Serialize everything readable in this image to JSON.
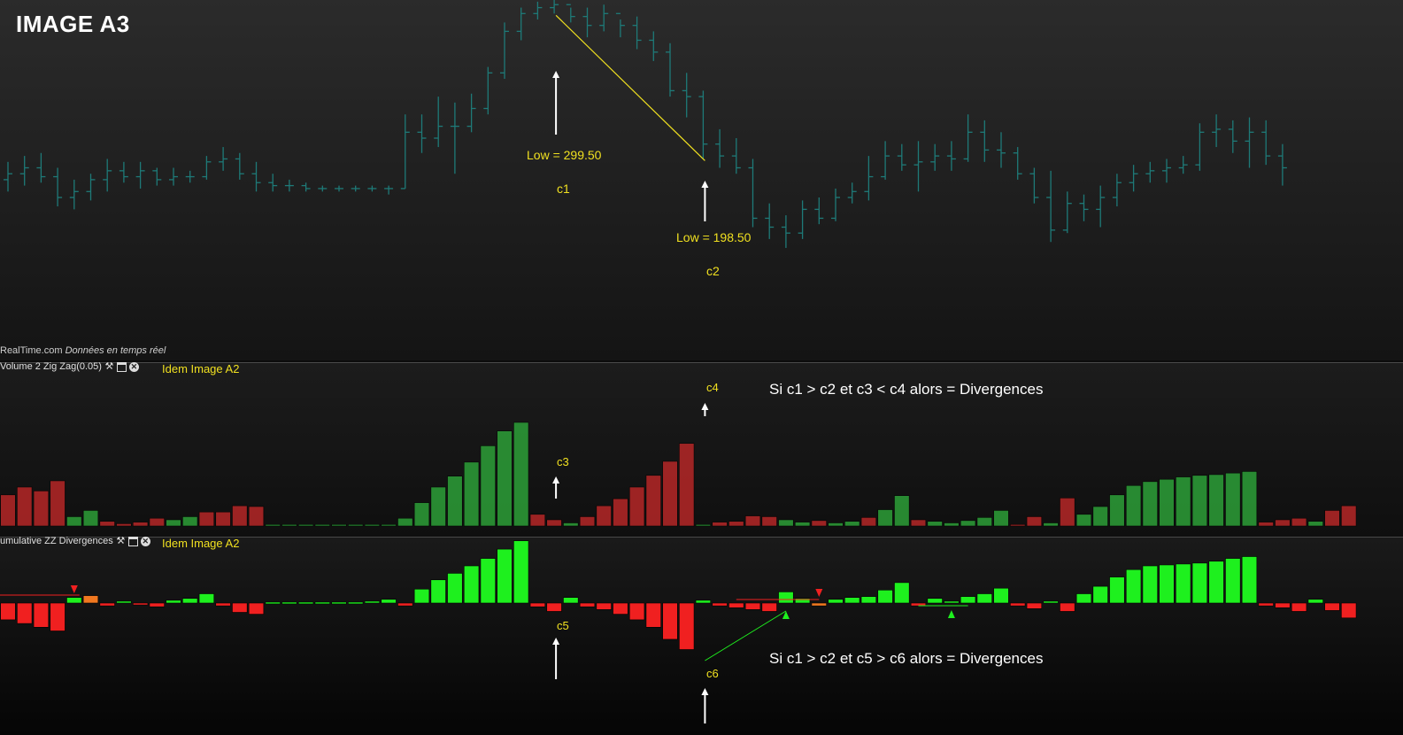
{
  "header": {
    "title": "IMAGE A3",
    "source": "RealTime.com",
    "source_note": "Données en temps réel"
  },
  "panes": {
    "volume": {
      "label": "Volume 2 Zig Zag(0.05)",
      "note": "Idem Image A2"
    },
    "divergence": {
      "label": "umulative ZZ Divergences",
      "note": "Idem Image A2"
    }
  },
  "annotations": {
    "low1": "Low = 299.50",
    "c1": "c1",
    "low2": "Low = 198.50",
    "c2": "c2",
    "c3": "c3",
    "c4": "c4",
    "c5": "c5",
    "c6": "c6",
    "rule1": "Si c1 > c2 et c3 < c4 alors = Divergences",
    "rule2": "Si c1 > c2 et c5 > c6 alors = Divergences"
  },
  "colors": {
    "price": "#1e7a78",
    "up": "#2ea83a",
    "down": "#c02828",
    "div_up": "#1ef01e",
    "div_down": "#f02020",
    "accent": "#f0e020",
    "orange": "#f07820"
  },
  "chart_data": [
    {
      "type": "ohlc",
      "name": "price",
      "series": [
        {
          "o": 2.6,
          "h": 3.2,
          "l": 2.2,
          "c": 2.8
        },
        {
          "o": 2.8,
          "h": 3.4,
          "l": 2.4,
          "c": 3.0
        },
        {
          "o": 3.0,
          "h": 3.5,
          "l": 2.5,
          "c": 2.7
        },
        {
          "o": 2.7,
          "h": 3.0,
          "l": 1.7,
          "c": 2.0
        },
        {
          "o": 2.0,
          "h": 2.6,
          "l": 1.6,
          "c": 2.2
        },
        {
          "o": 2.2,
          "h": 2.8,
          "l": 1.9,
          "c": 2.6
        },
        {
          "o": 2.6,
          "h": 3.3,
          "l": 2.2,
          "c": 2.9
        },
        {
          "o": 2.9,
          "h": 3.2,
          "l": 2.5,
          "c": 2.7
        },
        {
          "o": 2.7,
          "h": 3.2,
          "l": 2.3,
          "c": 2.9
        },
        {
          "o": 2.9,
          "h": 3.0,
          "l": 2.4,
          "c": 2.6
        },
        {
          "o": 2.6,
          "h": 3.0,
          "l": 2.4,
          "c": 2.7
        },
        {
          "o": 2.7,
          "h": 2.9,
          "l": 2.5,
          "c": 2.7
        },
        {
          "o": 2.7,
          "h": 3.4,
          "l": 2.6,
          "c": 3.2
        },
        {
          "o": 3.2,
          "h": 3.7,
          "l": 2.9,
          "c": 3.3
        },
        {
          "o": 3.3,
          "h": 3.5,
          "l": 2.6,
          "c": 2.8
        },
        {
          "o": 2.8,
          "h": 3.2,
          "l": 2.2,
          "c": 2.5
        },
        {
          "o": 2.5,
          "h": 2.8,
          "l": 2.2,
          "c": 2.4
        },
        {
          "o": 2.4,
          "h": 2.6,
          "l": 2.2,
          "c": 2.4
        },
        {
          "o": 2.4,
          "h": 2.5,
          "l": 2.2,
          "c": 2.3
        },
        {
          "o": 2.3,
          "h": 2.4,
          "l": 2.2,
          "c": 2.3
        },
        {
          "o": 2.3,
          "h": 2.4,
          "l": 2.2,
          "c": 2.3
        },
        {
          "o": 2.3,
          "h": 2.4,
          "l": 2.2,
          "c": 2.3
        },
        {
          "o": 2.3,
          "h": 2.4,
          "l": 2.2,
          "c": 2.3
        },
        {
          "o": 2.3,
          "h": 2.4,
          "l": 2.1,
          "c": 2.3
        },
        {
          "o": 2.3,
          "h": 4.8,
          "l": 2.3,
          "c": 4.2
        },
        {
          "o": 4.2,
          "h": 4.8,
          "l": 3.5,
          "c": 4.0
        },
        {
          "o": 4.0,
          "h": 5.4,
          "l": 3.7,
          "c": 4.4
        },
        {
          "o": 4.4,
          "h": 5.2,
          "l": 2.8,
          "c": 4.4
        },
        {
          "o": 4.4,
          "h": 5.5,
          "l": 4.2,
          "c": 5.0
        },
        {
          "o": 5.0,
          "h": 6.4,
          "l": 4.8,
          "c": 6.2
        },
        {
          "o": 6.2,
          "h": 7.9,
          "l": 6.0,
          "c": 7.6
        },
        {
          "o": 7.6,
          "h": 8.4,
          "l": 7.3,
          "c": 8.2
        },
        {
          "o": 8.2,
          "h": 8.6,
          "l": 8.0,
          "c": 8.4
        },
        {
          "o": 8.4,
          "h": 8.8,
          "l": 8.2,
          "c": 8.5
        },
        {
          "o": 8.5,
          "h": 8.4,
          "l": 7.9,
          "c": 8.1
        },
        {
          "o": 8.1,
          "h": 8.4,
          "l": 7.4,
          "c": 7.8
        },
        {
          "o": 7.8,
          "h": 8.5,
          "l": 7.6,
          "c": 8.2
        },
        {
          "o": 8.2,
          "h": 8.0,
          "l": 7.4,
          "c": 7.8
        },
        {
          "o": 7.8,
          "h": 8.1,
          "l": 7.0,
          "c": 7.3
        },
        {
          "o": 7.3,
          "h": 7.6,
          "l": 6.6,
          "c": 6.9
        },
        {
          "o": 6.9,
          "h": 7.2,
          "l": 5.4,
          "c": 5.6
        },
        {
          "o": 5.6,
          "h": 6.2,
          "l": 4.7,
          "c": 5.4
        },
        {
          "o": 5.4,
          "h": 5.6,
          "l": 3.3,
          "c": 3.8
        },
        {
          "o": 3.8,
          "h": 4.3,
          "l": 3.0,
          "c": 3.4
        },
        {
          "o": 3.4,
          "h": 4.0,
          "l": 2.8,
          "c": 3.0
        },
        {
          "o": 3.0,
          "h": 3.3,
          "l": 1.0,
          "c": 1.3
        },
        {
          "o": 1.3,
          "h": 1.8,
          "l": 0.6,
          "c": 1.0
        },
        {
          "o": 1.0,
          "h": 1.4,
          "l": 0.3,
          "c": 0.8
        },
        {
          "o": 0.8,
          "h": 1.9,
          "l": 0.6,
          "c": 1.6
        },
        {
          "o": 1.6,
          "h": 2.0,
          "l": 1.1,
          "c": 1.3
        },
        {
          "o": 1.3,
          "h": 2.3,
          "l": 1.2,
          "c": 2.0
        },
        {
          "o": 2.0,
          "h": 2.5,
          "l": 1.8,
          "c": 2.2
        },
        {
          "o": 2.2,
          "h": 3.4,
          "l": 1.9,
          "c": 2.7
        },
        {
          "o": 2.7,
          "h": 3.9,
          "l": 2.6,
          "c": 3.4
        },
        {
          "o": 3.4,
          "h": 3.8,
          "l": 2.9,
          "c": 3.1
        },
        {
          "o": 3.1,
          "h": 3.9,
          "l": 2.2,
          "c": 3.2
        },
        {
          "o": 3.2,
          "h": 3.8,
          "l": 2.9,
          "c": 3.4
        },
        {
          "o": 3.4,
          "h": 3.9,
          "l": 2.9,
          "c": 3.3
        },
        {
          "o": 3.3,
          "h": 4.8,
          "l": 3.2,
          "c": 4.2
        },
        {
          "o": 4.2,
          "h": 4.6,
          "l": 3.2,
          "c": 3.6
        },
        {
          "o": 3.6,
          "h": 4.2,
          "l": 3.0,
          "c": 3.5
        },
        {
          "o": 3.5,
          "h": 3.7,
          "l": 2.6,
          "c": 2.8
        },
        {
          "o": 2.8,
          "h": 3.0,
          "l": 1.8,
          "c": 2.0
        },
        {
          "o": 2.0,
          "h": 2.9,
          "l": 0.5,
          "c": 0.9
        },
        {
          "o": 0.9,
          "h": 2.2,
          "l": 0.8,
          "c": 1.8
        },
        {
          "o": 1.8,
          "h": 2.1,
          "l": 1.2,
          "c": 1.6
        },
        {
          "o": 1.6,
          "h": 2.4,
          "l": 1.0,
          "c": 2.0
        },
        {
          "o": 2.0,
          "h": 2.8,
          "l": 1.7,
          "c": 2.5
        },
        {
          "o": 2.5,
          "h": 3.1,
          "l": 2.2,
          "c": 2.8
        },
        {
          "o": 2.8,
          "h": 3.2,
          "l": 2.5,
          "c": 2.9
        },
        {
          "o": 2.9,
          "h": 3.3,
          "l": 2.5,
          "c": 3.0
        },
        {
          "o": 3.0,
          "h": 3.4,
          "l": 2.8,
          "c": 3.1
        },
        {
          "o": 3.1,
          "h": 4.5,
          "l": 2.9,
          "c": 4.2
        },
        {
          "o": 4.2,
          "h": 4.8,
          "l": 3.7,
          "c": 4.3
        },
        {
          "o": 4.3,
          "h": 4.6,
          "l": 3.5,
          "c": 3.9
        },
        {
          "o": 3.9,
          "h": 4.7,
          "l": 3.0,
          "c": 4.2
        },
        {
          "o": 4.2,
          "h": 4.6,
          "l": 3.1,
          "c": 3.4
        },
        {
          "o": 3.4,
          "h": 3.8,
          "l": 2.4,
          "c": 3.0
        }
      ]
    },
    {
      "type": "bar",
      "name": "Volume 2 Zig Zag(0.05)",
      "values": [
        4,
        5,
        4.5,
        5.8,
        1.2,
        2,
        0.6,
        0.3,
        0.5,
        1,
        0.8,
        1.2,
        1.8,
        1.8,
        2.6,
        2.5,
        0.2,
        0.2,
        0.2,
        0.2,
        0.2,
        0.2,
        0.2,
        0.2,
        1,
        3,
        5,
        6.4,
        8.2,
        10.3,
        12.2,
        13.3,
        1.5,
        0.8,
        0.4,
        1.2,
        2.6,
        3.5,
        5,
        6.5,
        8.3,
        10.6,
        0.2,
        0.5,
        0.6,
        1.3,
        1.2,
        0.8,
        0.5,
        0.7,
        0.4,
        0.6,
        1.1,
        2.1,
        3.9,
        0.8,
        0.6,
        0.4,
        0.7,
        1.1,
        2.0,
        0.2,
        1.2,
        0.4,
        3.6,
        1.5,
        2.5,
        4.0,
        5.2,
        5.7,
        6.0,
        6.3,
        6.5,
        6.6,
        6.8,
        7.0,
        0.5,
        0.8,
        1.0,
        0.6,
        2.0,
        2.6
      ],
      "direction": [
        -1,
        -1,
        -1,
        -1,
        1,
        1,
        -1,
        -1,
        -1,
        -1,
        1,
        1,
        -1,
        -1,
        -1,
        -1,
        1,
        1,
        1,
        1,
        1,
        1,
        1,
        1,
        1,
        1,
        1,
        1,
        1,
        1,
        1,
        1,
        -1,
        -1,
        1,
        -1,
        -1,
        -1,
        -1,
        -1,
        -1,
        -1,
        1,
        -1,
        -1,
        -1,
        -1,
        1,
        1,
        -1,
        1,
        1,
        -1,
        1,
        1,
        -1,
        1,
        1,
        1,
        1,
        1,
        -1,
        -1,
        1,
        -1,
        1,
        1,
        1,
        1,
        1,
        1,
        1,
        1,
        1,
        1,
        1,
        -1,
        -1,
        -1,
        1,
        -1,
        -1
      ]
    },
    {
      "type": "bar",
      "name": "Cumulative ZZ Divergences",
      "values": [
        -1.8,
        -2.2,
        -2.6,
        -3.0,
        0.6,
        0.8,
        -0.3,
        0.2,
        -0.2,
        -0.4,
        0.3,
        0.5,
        1.0,
        -0.3,
        -1.0,
        -1.2,
        0.1,
        0.1,
        0.1,
        0.1,
        0.1,
        0.1,
        0.2,
        0.4,
        -0.3,
        1.5,
        2.5,
        3.2,
        4.0,
        4.8,
        5.8,
        6.7,
        -0.4,
        -0.9,
        0.6,
        -0.4,
        -0.7,
        -1.2,
        -1.8,
        -2.6,
        -3.9,
        -5.0,
        0.3,
        -0.3,
        -0.5,
        -0.7,
        -0.9,
        1.2,
        0.5,
        -0.3,
        0.4,
        0.6,
        0.7,
        1.4,
        2.2,
        -0.3,
        0.5,
        0.2,
        0.7,
        1.0,
        1.6,
        -0.3,
        -0.6,
        0.2,
        -0.9,
        1.0,
        1.8,
        2.8,
        3.6,
        4.0,
        4.1,
        4.2,
        4.3,
        4.5,
        4.8,
        5.0,
        -0.3,
        -0.5,
        -0.9,
        0.4,
        -0.8,
        -1.6
      ],
      "direction": [
        -1,
        -1,
        -1,
        -1,
        1,
        1,
        -1,
        1,
        -1,
        -1,
        1,
        1,
        1,
        -1,
        -1,
        -1,
        1,
        1,
        1,
        1,
        1,
        1,
        1,
        1,
        -1,
        1,
        1,
        1,
        1,
        1,
        1,
        1,
        -1,
        -1,
        1,
        -1,
        -1,
        -1,
        -1,
        -1,
        -1,
        -1,
        1,
        -1,
        -1,
        -1,
        -1,
        1,
        1,
        -1,
        1,
        1,
        1,
        1,
        1,
        -1,
        1,
        1,
        1,
        1,
        1,
        -1,
        -1,
        1,
        -1,
        1,
        1,
        1,
        1,
        1,
        1,
        1,
        1,
        1,
        1,
        1,
        -1,
        -1,
        -1,
        1,
        -1,
        -1
      ],
      "highlight": {
        "orange": [
          5,
          49
        ]
      }
    }
  ]
}
